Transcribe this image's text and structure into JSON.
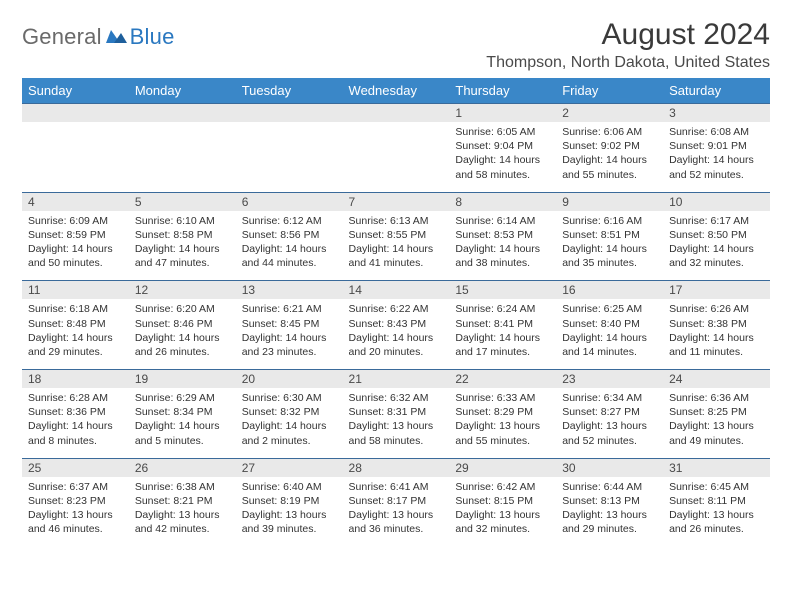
{
  "logo": {
    "text1": "General",
    "text2": "Blue",
    "color1": "#6a6a6a",
    "color2": "#2a78c0"
  },
  "title": "August 2024",
  "location": "Thompson, North Dakota, United States",
  "colors": {
    "header_bg": "#3a87c8",
    "header_text": "#ffffff",
    "daynum_bg": "#e9e9e9",
    "daynum_text": "#4a4a4a",
    "cell_text": "#333333",
    "rule": "#3a6a9a",
    "page_bg": "#ffffff"
  },
  "typography": {
    "title_fontsize": 30,
    "location_fontsize": 16,
    "dow_fontsize": 13,
    "daynum_fontsize": 12,
    "cell_fontsize": 10.5
  },
  "days_of_week": [
    "Sunday",
    "Monday",
    "Tuesday",
    "Wednesday",
    "Thursday",
    "Friday",
    "Saturday"
  ],
  "weeks": [
    {
      "nums": [
        "",
        "",
        "",
        "",
        "1",
        "2",
        "3"
      ],
      "cells": [
        {
          "sunrise": "",
          "sunset": "",
          "daylight": ""
        },
        {
          "sunrise": "",
          "sunset": "",
          "daylight": ""
        },
        {
          "sunrise": "",
          "sunset": "",
          "daylight": ""
        },
        {
          "sunrise": "",
          "sunset": "",
          "daylight": ""
        },
        {
          "sunrise": "Sunrise: 6:05 AM",
          "sunset": "Sunset: 9:04 PM",
          "daylight": "Daylight: 14 hours and 58 minutes."
        },
        {
          "sunrise": "Sunrise: 6:06 AM",
          "sunset": "Sunset: 9:02 PM",
          "daylight": "Daylight: 14 hours and 55 minutes."
        },
        {
          "sunrise": "Sunrise: 6:08 AM",
          "sunset": "Sunset: 9:01 PM",
          "daylight": "Daylight: 14 hours and 52 minutes."
        }
      ]
    },
    {
      "nums": [
        "4",
        "5",
        "6",
        "7",
        "8",
        "9",
        "10"
      ],
      "cells": [
        {
          "sunrise": "Sunrise: 6:09 AM",
          "sunset": "Sunset: 8:59 PM",
          "daylight": "Daylight: 14 hours and 50 minutes."
        },
        {
          "sunrise": "Sunrise: 6:10 AM",
          "sunset": "Sunset: 8:58 PM",
          "daylight": "Daylight: 14 hours and 47 minutes."
        },
        {
          "sunrise": "Sunrise: 6:12 AM",
          "sunset": "Sunset: 8:56 PM",
          "daylight": "Daylight: 14 hours and 44 minutes."
        },
        {
          "sunrise": "Sunrise: 6:13 AM",
          "sunset": "Sunset: 8:55 PM",
          "daylight": "Daylight: 14 hours and 41 minutes."
        },
        {
          "sunrise": "Sunrise: 6:14 AM",
          "sunset": "Sunset: 8:53 PM",
          "daylight": "Daylight: 14 hours and 38 minutes."
        },
        {
          "sunrise": "Sunrise: 6:16 AM",
          "sunset": "Sunset: 8:51 PM",
          "daylight": "Daylight: 14 hours and 35 minutes."
        },
        {
          "sunrise": "Sunrise: 6:17 AM",
          "sunset": "Sunset: 8:50 PM",
          "daylight": "Daylight: 14 hours and 32 minutes."
        }
      ]
    },
    {
      "nums": [
        "11",
        "12",
        "13",
        "14",
        "15",
        "16",
        "17"
      ],
      "cells": [
        {
          "sunrise": "Sunrise: 6:18 AM",
          "sunset": "Sunset: 8:48 PM",
          "daylight": "Daylight: 14 hours and 29 minutes."
        },
        {
          "sunrise": "Sunrise: 6:20 AM",
          "sunset": "Sunset: 8:46 PM",
          "daylight": "Daylight: 14 hours and 26 minutes."
        },
        {
          "sunrise": "Sunrise: 6:21 AM",
          "sunset": "Sunset: 8:45 PM",
          "daylight": "Daylight: 14 hours and 23 minutes."
        },
        {
          "sunrise": "Sunrise: 6:22 AM",
          "sunset": "Sunset: 8:43 PM",
          "daylight": "Daylight: 14 hours and 20 minutes."
        },
        {
          "sunrise": "Sunrise: 6:24 AM",
          "sunset": "Sunset: 8:41 PM",
          "daylight": "Daylight: 14 hours and 17 minutes."
        },
        {
          "sunrise": "Sunrise: 6:25 AM",
          "sunset": "Sunset: 8:40 PM",
          "daylight": "Daylight: 14 hours and 14 minutes."
        },
        {
          "sunrise": "Sunrise: 6:26 AM",
          "sunset": "Sunset: 8:38 PM",
          "daylight": "Daylight: 14 hours and 11 minutes."
        }
      ]
    },
    {
      "nums": [
        "18",
        "19",
        "20",
        "21",
        "22",
        "23",
        "24"
      ],
      "cells": [
        {
          "sunrise": "Sunrise: 6:28 AM",
          "sunset": "Sunset: 8:36 PM",
          "daylight": "Daylight: 14 hours and 8 minutes."
        },
        {
          "sunrise": "Sunrise: 6:29 AM",
          "sunset": "Sunset: 8:34 PM",
          "daylight": "Daylight: 14 hours and 5 minutes."
        },
        {
          "sunrise": "Sunrise: 6:30 AM",
          "sunset": "Sunset: 8:32 PM",
          "daylight": "Daylight: 14 hours and 2 minutes."
        },
        {
          "sunrise": "Sunrise: 6:32 AM",
          "sunset": "Sunset: 8:31 PM",
          "daylight": "Daylight: 13 hours and 58 minutes."
        },
        {
          "sunrise": "Sunrise: 6:33 AM",
          "sunset": "Sunset: 8:29 PM",
          "daylight": "Daylight: 13 hours and 55 minutes."
        },
        {
          "sunrise": "Sunrise: 6:34 AM",
          "sunset": "Sunset: 8:27 PM",
          "daylight": "Daylight: 13 hours and 52 minutes."
        },
        {
          "sunrise": "Sunrise: 6:36 AM",
          "sunset": "Sunset: 8:25 PM",
          "daylight": "Daylight: 13 hours and 49 minutes."
        }
      ]
    },
    {
      "nums": [
        "25",
        "26",
        "27",
        "28",
        "29",
        "30",
        "31"
      ],
      "cells": [
        {
          "sunrise": "Sunrise: 6:37 AM",
          "sunset": "Sunset: 8:23 PM",
          "daylight": "Daylight: 13 hours and 46 minutes."
        },
        {
          "sunrise": "Sunrise: 6:38 AM",
          "sunset": "Sunset: 8:21 PM",
          "daylight": "Daylight: 13 hours and 42 minutes."
        },
        {
          "sunrise": "Sunrise: 6:40 AM",
          "sunset": "Sunset: 8:19 PM",
          "daylight": "Daylight: 13 hours and 39 minutes."
        },
        {
          "sunrise": "Sunrise: 6:41 AM",
          "sunset": "Sunset: 8:17 PM",
          "daylight": "Daylight: 13 hours and 36 minutes."
        },
        {
          "sunrise": "Sunrise: 6:42 AM",
          "sunset": "Sunset: 8:15 PM",
          "daylight": "Daylight: 13 hours and 32 minutes."
        },
        {
          "sunrise": "Sunrise: 6:44 AM",
          "sunset": "Sunset: 8:13 PM",
          "daylight": "Daylight: 13 hours and 29 minutes."
        },
        {
          "sunrise": "Sunrise: 6:45 AM",
          "sunset": "Sunset: 8:11 PM",
          "daylight": "Daylight: 13 hours and 26 minutes."
        }
      ]
    }
  ]
}
